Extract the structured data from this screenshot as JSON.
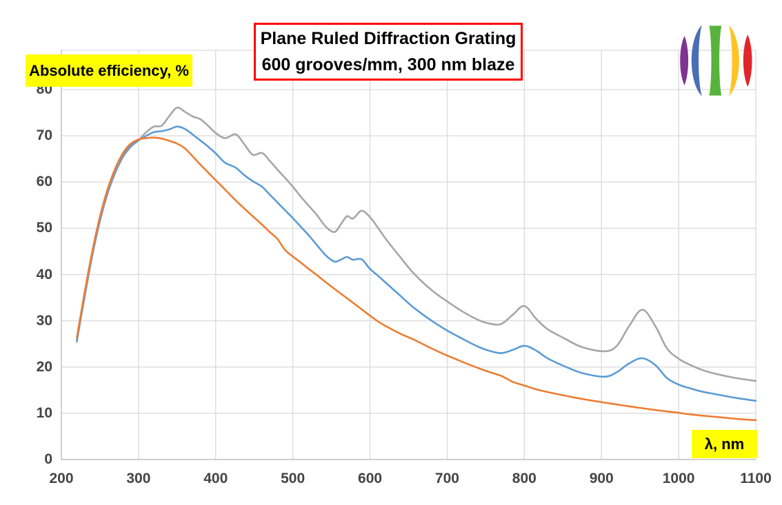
{
  "title": {
    "line1": "Plane Ruled Diffraction Grating",
    "line2": "600 grooves/mm, 300 nm blaze"
  },
  "y_axis_label": "Absolute efficiency, %",
  "x_axis_label": "λ, nm",
  "colors": {
    "gridline": "#D9D9D9",
    "axis_line": "#BFBFBF",
    "tick_text": "#444444",
    "title_border": "#FF0000",
    "label_highlight": "#FFFF00",
    "series_gray": "#A6A6A6",
    "series_blue": "#5B9BD5",
    "series_orange": "#ED7D31"
  },
  "logo": {
    "name": "striped-sphere-logo",
    "stripe_colors": [
      "#7F3292",
      "#4A6FB5",
      "#58B33C",
      "#FFC424",
      "#E0262A"
    ]
  },
  "chart_data": {
    "type": "line",
    "title": "Plane Ruled Diffraction Grating 600 grooves/mm, 300 nm blaze",
    "xlabel": "λ, nm",
    "ylabel": "Absolute efficiency, %",
    "xlim": [
      200,
      1100
    ],
    "ylim": [
      0,
      80
    ],
    "x_ticks": [
      200,
      300,
      400,
      500,
      600,
      700,
      800,
      900,
      1000,
      1100
    ],
    "y_ticks": [
      0,
      10,
      20,
      30,
      40,
      50,
      60,
      70,
      80
    ],
    "grid": true,
    "legend_position": "none",
    "x": [
      220,
      230,
      240,
      250,
      260,
      270,
      280,
      290,
      300,
      310,
      320,
      330,
      340,
      350,
      360,
      370,
      380,
      390,
      400,
      412,
      426,
      437,
      448,
      460,
      470,
      480,
      490,
      500,
      511,
      520,
      531,
      543,
      554,
      562,
      570,
      578,
      589,
      600,
      610,
      620,
      638,
      657,
      680,
      700,
      720,
      740,
      755,
      770,
      785,
      800,
      815,
      830,
      853,
      875,
      904,
      920,
      936,
      953,
      970,
      985,
      1000,
      1013,
      1030,
      1049,
      1075,
      1100
    ],
    "series": [
      {
        "name": "gray",
        "color": "#A6A6A6",
        "values": [
          25.4,
          35,
          44,
          51.5,
          57.5,
          62,
          65.4,
          67.6,
          69.0,
          70.8,
          72.0,
          72.2,
          74.3,
          76.1,
          75.2,
          74.2,
          73.6,
          72.2,
          70.6,
          69.5,
          70.3,
          68.2,
          65.9,
          66.3,
          64.6,
          62.7,
          60.9,
          59.0,
          56.7,
          55.0,
          52.9,
          50.3,
          49.2,
          50.8,
          52.6,
          52.1,
          53.8,
          52.4,
          50.2,
          47.8,
          44.0,
          40.2,
          36.6,
          34.2,
          32.0,
          30.2,
          29.4,
          29.3,
          31.3,
          33.2,
          30.5,
          28.2,
          26.1,
          24.3,
          23.4,
          24.6,
          28.9,
          32.4,
          28.8,
          24.0,
          21.8,
          20.6,
          19.4,
          18.5,
          17.6,
          17.0
        ]
      },
      {
        "name": "blue",
        "color": "#5B9BD5",
        "values": [
          25.8,
          35.5,
          44.5,
          52,
          58,
          62.5,
          65.8,
          67.9,
          69.0,
          70.0,
          70.8,
          71.0,
          71.4,
          72.0,
          71.5,
          70.3,
          69.0,
          67.7,
          66.2,
          64.2,
          63.1,
          61.5,
          60.2,
          59.0,
          57.3,
          55.6,
          53.9,
          52.2,
          50.2,
          48.6,
          46.4,
          44.1,
          42.8,
          43.2,
          43.8,
          43.2,
          43.3,
          41.2,
          39.8,
          38.3,
          35.6,
          32.8,
          30.0,
          27.9,
          26.1,
          24.4,
          23.5,
          23.0,
          23.7,
          24.6,
          23.6,
          21.9,
          20.1,
          18.7,
          17.9,
          18.9,
          20.8,
          21.9,
          20.4,
          17.6,
          16.2,
          15.5,
          14.7,
          14.1,
          13.3,
          12.7
        ]
      },
      {
        "name": "orange",
        "color": "#ED7D31",
        "values": [
          26.3,
          36,
          45,
          52.5,
          58.5,
          63,
          66.3,
          68.3,
          69.2,
          69.5,
          69.6,
          69.4,
          68.9,
          68.3,
          67.3,
          65.6,
          63.8,
          62.1,
          60.4,
          58.4,
          56.0,
          54.3,
          52.6,
          50.8,
          49.2,
          47.7,
          45.3,
          43.9,
          42.5,
          41.3,
          39.9,
          38.3,
          36.9,
          35.9,
          34.9,
          33.9,
          32.5,
          31.1,
          29.9,
          28.9,
          27.3,
          25.9,
          24.0,
          22.5,
          21.1,
          19.8,
          18.9,
          18.1,
          16.8,
          16.0,
          15.2,
          14.6,
          13.8,
          13.1,
          12.3,
          11.9,
          11.5,
          11.1,
          10.7,
          10.4,
          10.1,
          9.8,
          9.5,
          9.2,
          8.8,
          8.5
        ]
      }
    ]
  }
}
